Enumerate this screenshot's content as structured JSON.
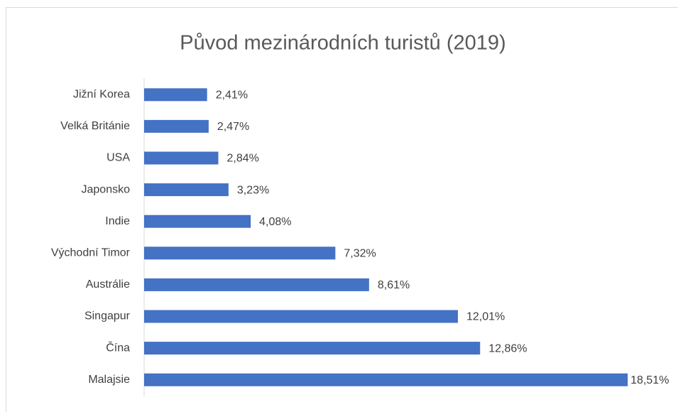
{
  "chart_data": {
    "type": "bar",
    "orientation": "horizontal",
    "title": "Původ mezinárodních turistů (2019)",
    "categories": [
      "Jižní Korea",
      "Velká Británie",
      "USA",
      "Japonsko",
      "Indie",
      "Východní Timor",
      "Austrálie",
      "Singapur",
      "Čína",
      "Malajsie"
    ],
    "values": [
      2.41,
      2.47,
      2.84,
      3.23,
      4.08,
      7.32,
      8.61,
      12.01,
      12.86,
      18.51
    ],
    "value_labels": [
      "2,41%",
      "2,47%",
      "2,84%",
      "3,23%",
      "4,08%",
      "7,32%",
      "8,61%",
      "12,01%",
      "12,86%",
      "18,51%"
    ],
    "color": "#4472c4",
    "xlim": [
      0,
      20
    ],
    "grid": false
  }
}
